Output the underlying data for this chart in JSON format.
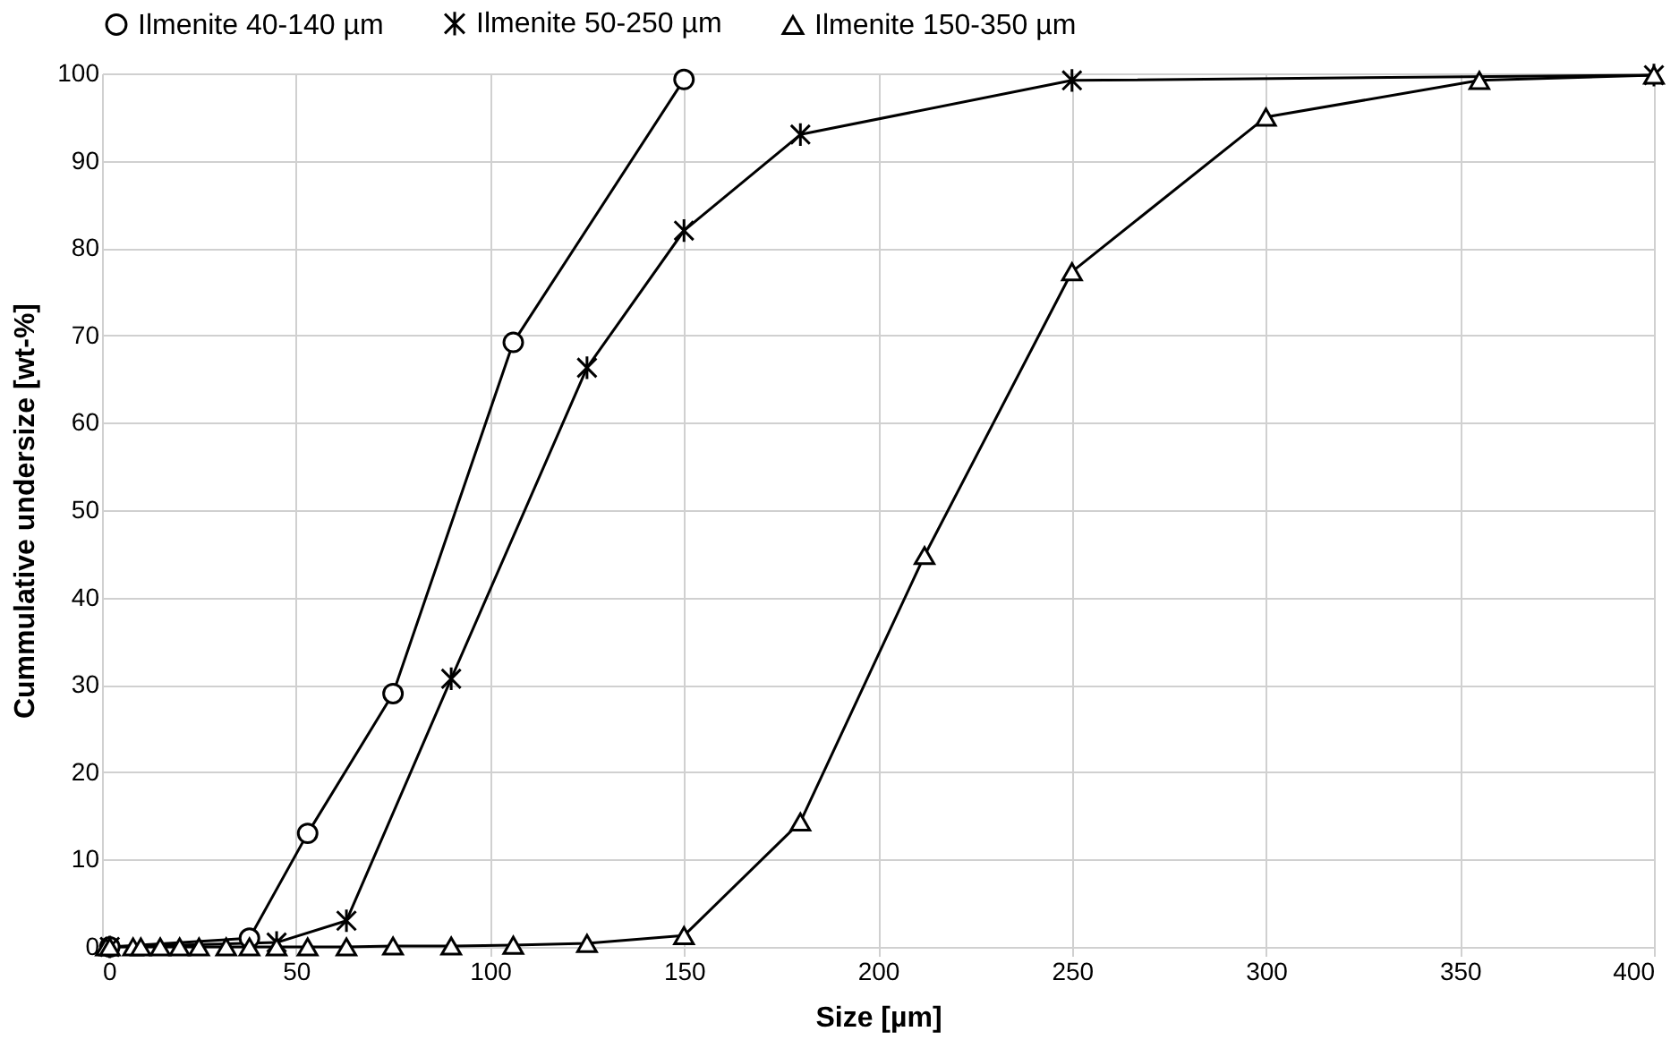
{
  "chart_data": {
    "type": "line",
    "xlabel": "Size [µm]",
    "ylabel": "Cummulative undersize [wt-%]",
    "xlim": [
      0,
      400
    ],
    "xticks": [
      0,
      50,
      100,
      150,
      200,
      250,
      300,
      350,
      400
    ],
    "ylim": [
      0,
      100
    ],
    "yticks": [
      0,
      10,
      20,
      30,
      40,
      50,
      60,
      70,
      80,
      90,
      100
    ],
    "grid": true,
    "legend": "top",
    "series": [
      {
        "name": "Ilmenite 40-140 µm",
        "color": "#000000",
        "marker": "circle",
        "x": [
          2,
          38,
          53,
          75,
          106,
          150
        ],
        "values": [
          0,
          1,
          13,
          29,
          69.2,
          99.3
        ]
      },
      {
        "name": "Ilmenite 50-250 µm",
        "color": "#000000",
        "marker": "cross",
        "x": [
          2,
          45,
          63,
          90,
          125,
          150,
          180,
          250,
          400
        ],
        "values": [
          0,
          0.5,
          3,
          30.7,
          66.3,
          82,
          93,
          99.2,
          99.8
        ]
      },
      {
        "name": "Ilmenite 150-350 µm",
        "color": "#000000",
        "marker": "triangle",
        "x": [
          1,
          2,
          8,
          10,
          15,
          20,
          25,
          32,
          38,
          45,
          53,
          63,
          75,
          90,
          106,
          125,
          150,
          180,
          212,
          250,
          300,
          355,
          400
        ],
        "values": [
          0,
          0,
          0,
          0,
          0,
          0,
          0,
          0,
          0,
          0,
          0,
          0,
          0.1,
          0.1,
          0.2,
          0.4,
          1.3,
          14.3,
          44.8,
          77.3,
          95,
          99.2,
          99.8
        ]
      }
    ]
  }
}
